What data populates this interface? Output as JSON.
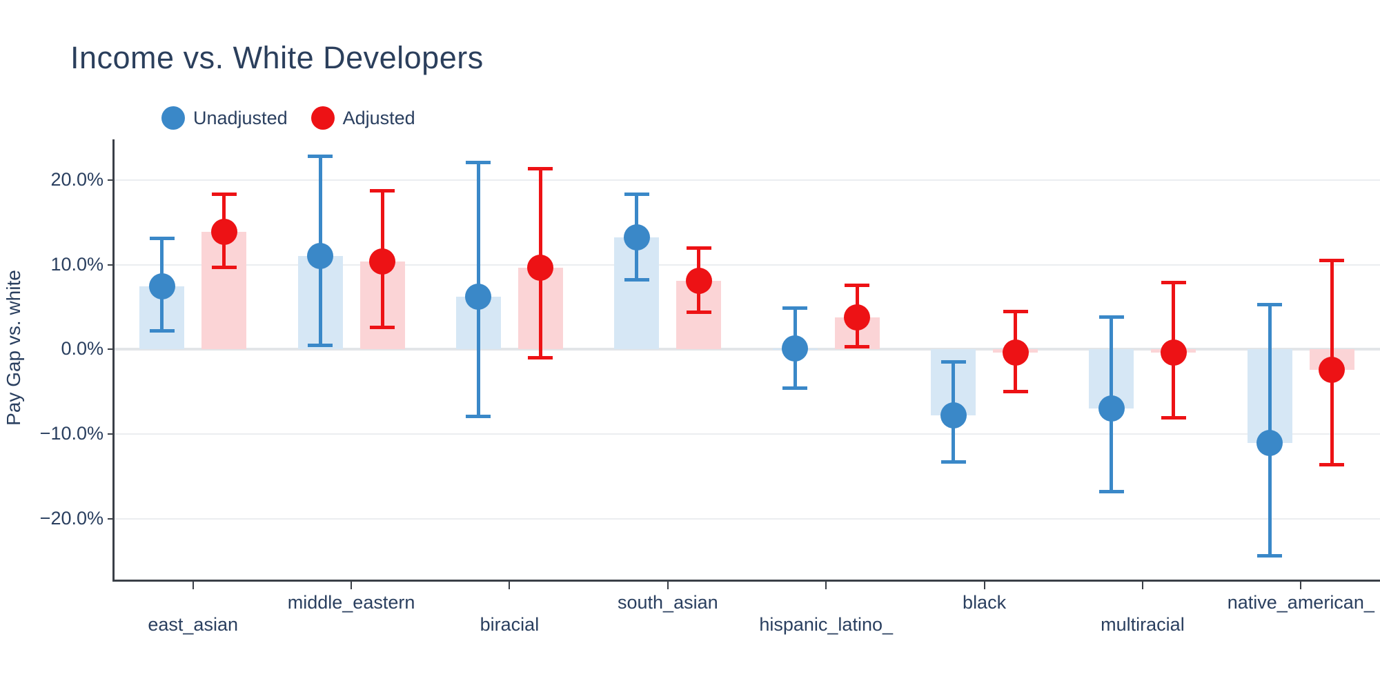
{
  "chart_data": {
    "type": "scatter",
    "subtype": "grouped-points-with-error-bars-and-bars",
    "title": "Income vs. White Developers",
    "ylabel": "Pay Gap vs. white",
    "xlabel": "",
    "legend": [
      {
        "label": "Unadjusted",
        "color": "#3a88c8"
      },
      {
        "label": "Adjusted",
        "color": "#ed1215"
      }
    ],
    "legend_position": "top-left",
    "grid": true,
    "categories": [
      "east_asian",
      "middle_eastern",
      "biracial",
      "south_asian",
      "hispanic_latino_",
      "black",
      "multiracial",
      "native_american_"
    ],
    "ylim": [
      -27.2,
      24.8
    ],
    "yticks": [
      {
        "value": 20,
        "label": "20.0%"
      },
      {
        "value": 10,
        "label": "10.0%"
      },
      {
        "value": 0,
        "label": "0.0%"
      },
      {
        "value": -10,
        "label": "−10.0%"
      },
      {
        "value": -20,
        "label": "−20.0%"
      }
    ],
    "series": [
      {
        "name": "Unadjusted",
        "marker_color": "#3a88c8",
        "bar_color": "#d6e7f5",
        "values": [
          7.4,
          11.0,
          6.2,
          13.2,
          0.1,
          -7.8,
          -7.0,
          -11.1
        ],
        "ci_low": [
          2.2,
          0.5,
          -7.9,
          8.2,
          -4.6,
          -13.3,
          -16.8,
          -24.4
        ],
        "ci_high": [
          13.1,
          22.8,
          22.1,
          18.3,
          4.9,
          -1.5,
          3.8,
          5.3
        ]
      },
      {
        "name": "Adjusted",
        "marker_color": "#ed1215",
        "bar_color": "#fbd4d6",
        "values": [
          13.9,
          10.4,
          9.6,
          8.1,
          3.8,
          -0.4,
          -0.4,
          -2.4
        ],
        "ci_low": [
          9.7,
          2.6,
          -1.0,
          4.4,
          0.3,
          -5.0,
          -8.1,
          -13.6
        ],
        "ci_high": [
          18.3,
          18.7,
          21.3,
          12.0,
          7.6,
          4.5,
          7.9,
          10.5
        ]
      }
    ],
    "colors": {
      "unadjusted_marker": "#3a88c8",
      "unadjusted_bar": "#d6e7f5",
      "adjusted_marker": "#ed1215",
      "adjusted_bar": "#fbd4d6",
      "text": "#2a3f5f",
      "gridline": "#ebedf0",
      "zero_line": "#e2e5e8",
      "spine": "#3a3f47",
      "background": "#ffffff"
    }
  }
}
